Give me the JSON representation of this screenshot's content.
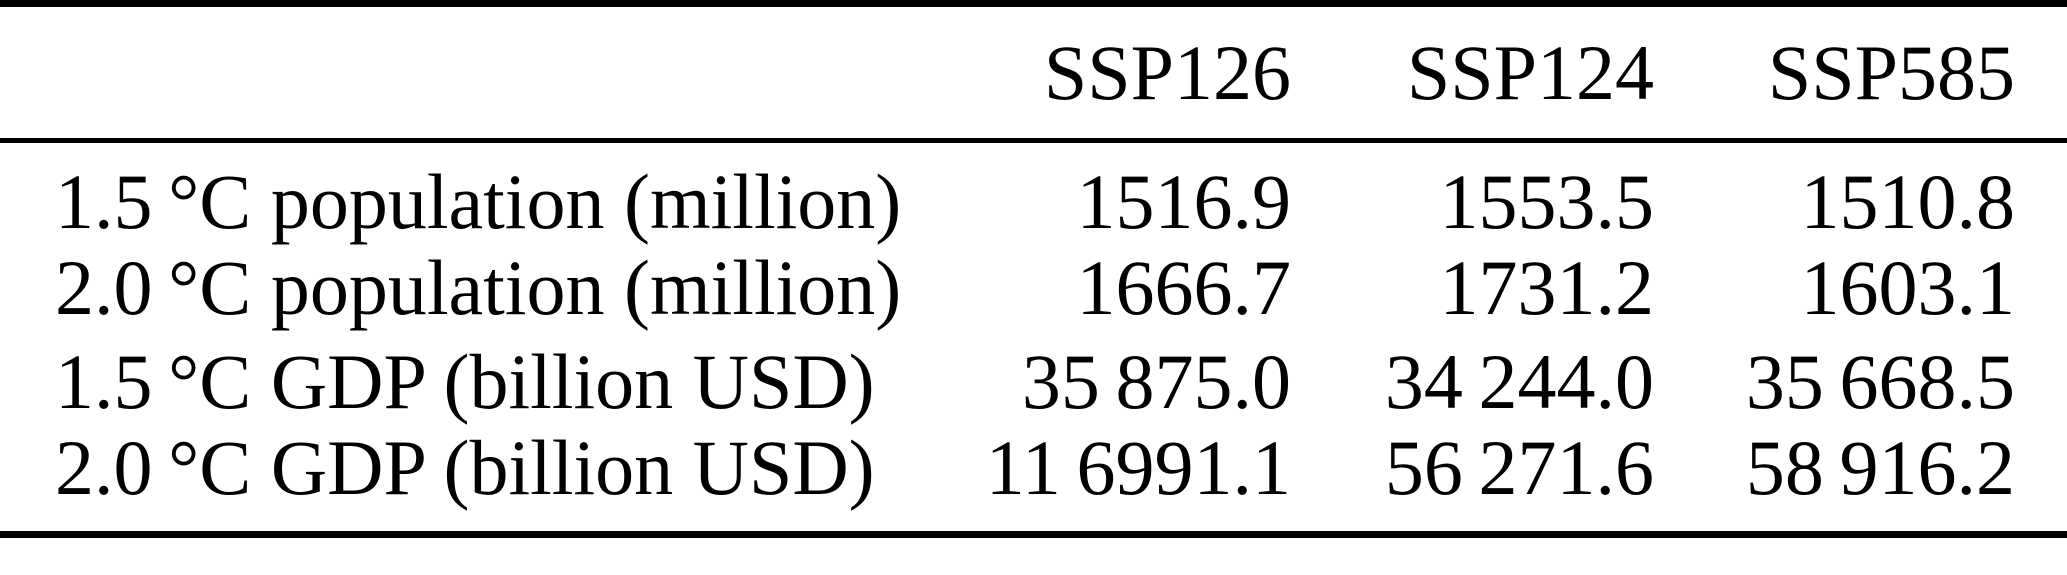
{
  "table": {
    "columns": {
      "c0": "",
      "c1": "SSP126",
      "c2": "SSP124",
      "c3": "SSP585"
    },
    "rows": [
      {
        "label": "1.5 °C population (million)",
        "values": [
          "1516.9",
          "1553.5",
          "1510.8"
        ]
      },
      {
        "label": "2.0 °C population (million)",
        "values": [
          "1666.7",
          "1731.2",
          "1603.1"
        ]
      },
      {
        "label": "1.5 °C GDP (billion USD)",
        "values": [
          "35 875.0",
          "34 244.0",
          "35 668.5"
        ]
      },
      {
        "label": "2.0 °C GDP (billion USD)",
        "values": [
          "11 6991.1",
          "56 271.6",
          "58 916.2"
        ]
      }
    ],
    "colors": {
      "text": "#000000",
      "rule": "#000000",
      "background": "#ffffff"
    }
  },
  "chart_data": {
    "type": "table",
    "categories": [
      "SSP126",
      "SSP124",
      "SSP585"
    ],
    "series": [
      {
        "name": "1.5 °C population (million)",
        "values": [
          1516.9,
          1553.5,
          1510.8
        ]
      },
      {
        "name": "2.0 °C population (million)",
        "values": [
          1666.7,
          1731.2,
          1603.1
        ]
      },
      {
        "name": "1.5 °C GDP (billion USD)",
        "values": [
          35875.0,
          34244.0,
          35668.5
        ]
      },
      {
        "name": "2.0 °C GDP (billion USD)",
        "values": [
          116991.1,
          56271.6,
          58916.2
        ]
      }
    ],
    "title": "",
    "notes": "Academic-style table with horizontal rules only; numbers use thin-space thousands separators; fourth-row first value printed as 11 6991.1 in source"
  }
}
